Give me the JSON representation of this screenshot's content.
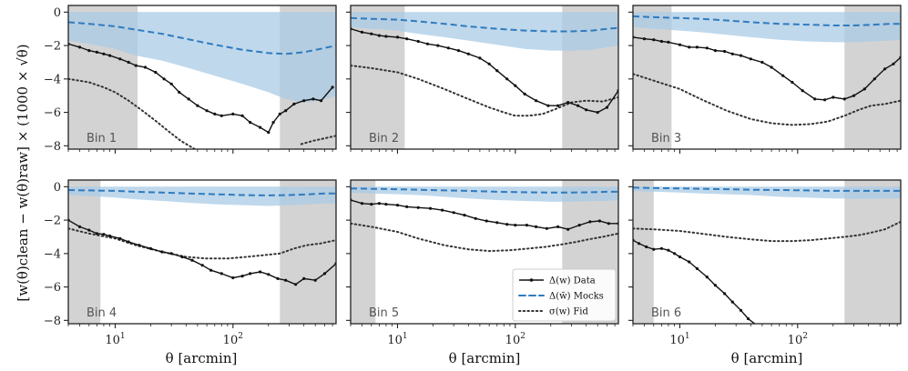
{
  "chart_data": {
    "type": "line",
    "layout": "2x3 grid of panels sharing x and y axes",
    "xlabel": "θ [arcmin]",
    "ylabel": "[w(θ)clean − w(θ)raw] × (1000 × √θ)",
    "xscale": "log",
    "xlim": [
      4,
      750
    ],
    "ylim": [
      -8.2,
      0.4
    ],
    "x_ticks": [
      {
        "value": 10,
        "base": "10",
        "exp": "1"
      },
      {
        "value": 100,
        "base": "10",
        "exp": "2"
      }
    ],
    "y_ticks": [
      "0",
      "−2",
      "−4",
      "−6",
      "−8"
    ],
    "y_tick_values": [
      0,
      -2,
      -4,
      -6,
      -8
    ],
    "legend": {
      "position": "panel 5, bottom-right",
      "entries": [
        "Δ(w) Data",
        "Δ(w̄) Mocks",
        "σ(w) Fid"
      ]
    },
    "colors": {
      "data": "#111111",
      "mocks": "#2f7bbf",
      "band": "#a9cbe6",
      "fid": "#333333",
      "mask": "#d3d3d3"
    },
    "panels": [
      {
        "label": "Bin 1",
        "masked_below": 15.5,
        "masked_above": 250,
        "data": {
          "x": [
            4,
            5,
            6,
            7,
            8,
            9,
            11,
            13,
            15,
            18,
            22,
            26,
            30,
            35,
            42,
            50,
            60,
            70,
            80,
            100,
            120,
            140,
            170,
            200,
            220,
            250,
            280,
            330,
            400,
            480,
            560,
            700
          ],
          "y": [
            -1.9,
            -2.1,
            -2.3,
            -2.4,
            -2.5,
            -2.6,
            -2.8,
            -3.0,
            -3.2,
            -3.3,
            -3.6,
            -4.0,
            -4.3,
            -4.8,
            -5.2,
            -5.6,
            -5.9,
            -6.1,
            -6.2,
            -6.1,
            -6.2,
            -6.6,
            -6.9,
            -7.2,
            -6.6,
            -6.1,
            -5.9,
            -5.5,
            -5.3,
            -5.2,
            -5.3,
            -4.5
          ]
        },
        "mocks": {
          "x": [
            4,
            6,
            10,
            15,
            25,
            40,
            70,
            120,
            200,
            280,
            400,
            550,
            750
          ],
          "y": [
            -0.6,
            -0.7,
            -0.85,
            -1.05,
            -1.3,
            -1.6,
            -1.95,
            -2.25,
            -2.45,
            -2.5,
            -2.4,
            -2.2,
            -2.0
          ]
        },
        "band_lower": [
          -1.7,
          -1.9,
          -2.2,
          -2.6,
          -2.9,
          -3.3,
          -3.8,
          -4.3,
          -4.8,
          -5.2,
          -5.4,
          -5.3,
          -5.0
        ],
        "band_upper": [
          0,
          0,
          0,
          0,
          0,
          0,
          0,
          0,
          0,
          0,
          0,
          0,
          0
        ],
        "fid": {
          "x": [
            4,
            6,
            8,
            10,
            13,
            17,
            22,
            28,
            36,
            50
          ],
          "y": [
            -4.0,
            -4.2,
            -4.5,
            -4.8,
            -5.3,
            -5.9,
            -6.5,
            -7.1,
            -7.7,
            -8.3
          ],
          "x2": [
            380,
            480,
            600,
            750
          ],
          "y2": [
            -7.9,
            -7.7,
            -7.55,
            -7.4
          ]
        }
      },
      {
        "label": "Bin 2",
        "masked_below": 11.5,
        "masked_above": 250,
        "data": {
          "x": [
            4,
            5,
            6,
            7,
            8,
            10,
            12,
            15,
            18,
            22,
            27,
            33,
            40,
            50,
            60,
            70,
            85,
            100,
            120,
            150,
            190,
            230,
            280,
            340,
            400,
            500,
            600,
            750
          ],
          "y": [
            -1.0,
            -1.2,
            -1.3,
            -1.4,
            -1.45,
            -1.5,
            -1.6,
            -1.75,
            -1.9,
            -2.0,
            -2.15,
            -2.3,
            -2.5,
            -2.75,
            -3.1,
            -3.5,
            -4.0,
            -4.4,
            -4.9,
            -5.3,
            -5.6,
            -5.6,
            -5.4,
            -5.6,
            -5.85,
            -6.0,
            -5.7,
            -4.7
          ]
        },
        "mocks": {
          "x": [
            4,
            6,
            10,
            15,
            25,
            40,
            70,
            120,
            200,
            300,
            450,
            600,
            750
          ],
          "y": [
            -0.35,
            -0.4,
            -0.45,
            -0.55,
            -0.7,
            -0.85,
            -1.0,
            -1.1,
            -1.15,
            -1.15,
            -1.1,
            -1.0,
            -0.95
          ]
        },
        "band_lower": [
          -0.9,
          -1.0,
          -1.1,
          -1.3,
          -1.5,
          -1.7,
          -1.95,
          -2.2,
          -2.3,
          -2.3,
          -2.25,
          -2.1,
          -2.0
        ],
        "band_upper": [
          0,
          0,
          0,
          0,
          0,
          0,
          0,
          0,
          0,
          0,
          0,
          0,
          0
        ],
        "fid": {
          "x": [
            4,
            6,
            10,
            15,
            25,
            40,
            60,
            80,
            100,
            130,
            170,
            220,
            300,
            400,
            550,
            750
          ],
          "y": [
            -3.2,
            -3.35,
            -3.6,
            -4.0,
            -4.6,
            -5.2,
            -5.7,
            -6.0,
            -6.2,
            -6.2,
            -6.1,
            -5.8,
            -5.4,
            -5.3,
            -5.35,
            -5.1
          ]
        }
      },
      {
        "label": "Bin 3",
        "masked_below": 8.5,
        "masked_above": 250,
        "data": {
          "x": [
            4,
            5,
            6,
            7,
            8,
            10,
            12,
            14,
            17,
            20,
            24,
            28,
            33,
            40,
            50,
            60,
            75,
            90,
            110,
            140,
            170,
            200,
            250,
            300,
            370,
            450,
            550,
            650,
            750
          ],
          "y": [
            -1.5,
            -1.6,
            -1.65,
            -1.75,
            -1.8,
            -1.95,
            -2.1,
            -2.1,
            -2.15,
            -2.3,
            -2.35,
            -2.5,
            -2.6,
            -2.8,
            -3.0,
            -3.3,
            -3.8,
            -4.2,
            -4.7,
            -5.2,
            -5.25,
            -5.1,
            -5.2,
            -5.0,
            -4.6,
            -4.0,
            -3.4,
            -3.1,
            -2.7
          ]
        },
        "mocks": {
          "x": [
            4,
            6,
            10,
            15,
            25,
            40,
            70,
            120,
            200,
            300,
            450,
            600,
            750
          ],
          "y": [
            -0.25,
            -0.3,
            -0.35,
            -0.4,
            -0.5,
            -0.6,
            -0.7,
            -0.75,
            -0.8,
            -0.8,
            -0.75,
            -0.7,
            -0.7
          ]
        },
        "band_lower": [
          -0.9,
          -1.0,
          -1.1,
          -1.2,
          -1.35,
          -1.5,
          -1.65,
          -1.75,
          -1.8,
          -1.8,
          -1.75,
          -1.7,
          -1.65
        ],
        "band_upper": [
          0,
          0,
          0,
          0,
          0,
          0,
          0,
          0,
          0,
          0,
          0,
          0,
          0
        ],
        "fid": {
          "x": [
            4,
            6,
            10,
            15,
            25,
            40,
            60,
            90,
            130,
            180,
            250,
            330,
            420,
            550,
            750
          ],
          "y": [
            -3.7,
            -4.1,
            -4.6,
            -5.2,
            -5.9,
            -6.4,
            -6.65,
            -6.75,
            -6.7,
            -6.55,
            -6.2,
            -5.85,
            -5.6,
            -5.5,
            -5.3
          ]
        }
      },
      {
        "label": "Bin 4",
        "masked_below": 7.5,
        "masked_above": 250,
        "data": {
          "x": [
            4,
            5,
            6,
            7,
            8,
            9,
            11,
            13,
            16,
            20,
            25,
            30,
            37,
            45,
            55,
            65,
            80,
            100,
            120,
            140,
            170,
            200,
            240,
            280,
            340,
            400,
            500,
            600,
            750
          ],
          "y": [
            -2.0,
            -2.4,
            -2.6,
            -2.8,
            -2.85,
            -2.95,
            -3.1,
            -3.3,
            -3.5,
            -3.7,
            -3.9,
            -4.0,
            -4.2,
            -4.4,
            -4.7,
            -5.0,
            -5.2,
            -5.45,
            -5.35,
            -5.2,
            -5.1,
            -5.25,
            -5.5,
            -5.6,
            -5.85,
            -5.5,
            -5.6,
            -5.2,
            -4.6
          ]
        },
        "mocks": {
          "x": [
            4,
            6,
            10,
            15,
            25,
            40,
            70,
            120,
            200,
            300,
            450,
            600,
            750
          ],
          "y": [
            -0.2,
            -0.22,
            -0.25,
            -0.3,
            -0.35,
            -0.4,
            -0.45,
            -0.5,
            -0.52,
            -0.5,
            -0.45,
            -0.4,
            -0.4
          ]
        },
        "band_lower": [
          -0.5,
          -0.55,
          -0.65,
          -0.75,
          -0.85,
          -0.95,
          -1.05,
          -1.1,
          -1.15,
          -1.1,
          -1.05,
          -1.0,
          -1.0
        ],
        "band_upper": [
          0,
          0,
          0,
          0,
          0,
          0,
          0,
          0,
          0,
          0,
          0,
          0,
          0
        ],
        "fid": {
          "x": [
            4,
            6,
            10,
            15,
            25,
            40,
            60,
            90,
            130,
            180,
            250,
            330,
            420,
            550,
            750
          ],
          "y": [
            -2.5,
            -2.8,
            -3.1,
            -3.5,
            -3.9,
            -4.2,
            -4.3,
            -4.3,
            -4.2,
            -4.1,
            -4.0,
            -3.7,
            -3.5,
            -3.4,
            -3.2
          ]
        }
      },
      {
        "label": "Bin 5",
        "masked_below": 6.5,
        "masked_above": 250,
        "data": {
          "x": [
            4,
            5,
            6,
            7,
            8,
            10,
            12,
            15,
            19,
            24,
            30,
            37,
            46,
            57,
            70,
            85,
            100,
            125,
            150,
            185,
            230,
            280,
            350,
            430,
            520,
            620,
            750
          ],
          "y": [
            -0.8,
            -1.0,
            -1.05,
            -1.0,
            -1.05,
            -1.1,
            -1.2,
            -1.25,
            -1.3,
            -1.4,
            -1.55,
            -1.7,
            -1.9,
            -2.05,
            -2.15,
            -2.25,
            -2.3,
            -2.3,
            -2.4,
            -2.5,
            -2.4,
            -2.55,
            -2.3,
            -2.1,
            -2.05,
            -2.2,
            -2.2
          ]
        },
        "mocks": {
          "x": [
            4,
            6,
            10,
            15,
            25,
            40,
            70,
            120,
            200,
            300,
            450,
            600,
            750
          ],
          "y": [
            -0.1,
            -0.12,
            -0.15,
            -0.18,
            -0.22,
            -0.25,
            -0.3,
            -0.33,
            -0.35,
            -0.35,
            -0.33,
            -0.3,
            -0.3
          ]
        },
        "band_lower": [
          -0.35,
          -0.4,
          -0.45,
          -0.5,
          -0.6,
          -0.7,
          -0.8,
          -0.85,
          -0.9,
          -0.9,
          -0.85,
          -0.85,
          -0.8
        ],
        "band_upper": [
          0,
          0,
          0,
          0,
          0,
          0,
          0,
          0,
          0,
          0,
          0,
          0,
          0
        ],
        "fid": {
          "x": [
            4,
            6,
            10,
            15,
            25,
            40,
            60,
            90,
            130,
            180,
            250,
            330,
            420,
            550,
            750
          ],
          "y": [
            -2.2,
            -2.4,
            -2.7,
            -3.1,
            -3.5,
            -3.75,
            -3.85,
            -3.8,
            -3.7,
            -3.6,
            -3.45,
            -3.3,
            -3.15,
            -3.0,
            -2.8
          ]
        }
      },
      {
        "label": "Bin 6",
        "masked_below": 6,
        "masked_above": 250,
        "data": {
          "x": [
            4,
            4.5,
            5.2,
            6,
            7,
            8,
            9,
            10,
            12,
            14,
            17,
            20,
            24,
            28,
            33,
            38,
            45
          ],
          "y": [
            -3.2,
            -3.4,
            -3.6,
            -3.75,
            -3.7,
            -3.8,
            -4.0,
            -4.2,
            -4.5,
            -4.9,
            -5.4,
            -5.9,
            -6.4,
            -6.9,
            -7.4,
            -7.9,
            -8.3
          ]
        },
        "mocks": {
          "x": [
            4,
            6,
            10,
            15,
            25,
            40,
            70,
            120,
            200,
            300,
            450,
            600,
            750
          ],
          "y": [
            -0.05,
            -0.08,
            -0.1,
            -0.12,
            -0.15,
            -0.18,
            -0.2,
            -0.22,
            -0.25,
            -0.25,
            -0.25,
            -0.25,
            -0.25
          ]
        },
        "band_lower": [
          -0.25,
          -0.3,
          -0.35,
          -0.4,
          -0.45,
          -0.5,
          -0.6,
          -0.65,
          -0.7,
          -0.72,
          -0.72,
          -0.7,
          -0.7
        ],
        "band_upper": [
          0,
          0,
          0,
          0,
          0,
          0,
          0,
          0,
          0,
          0,
          0,
          0,
          0
        ],
        "fid": {
          "x": [
            4,
            6,
            10,
            15,
            25,
            40,
            60,
            90,
            130,
            180,
            250,
            330,
            420,
            550,
            750
          ],
          "y": [
            -2.5,
            -2.55,
            -2.65,
            -2.8,
            -3.0,
            -3.15,
            -3.25,
            -3.25,
            -3.2,
            -3.1,
            -3.0,
            -2.9,
            -2.75,
            -2.55,
            -2.1
          ]
        }
      }
    ]
  }
}
